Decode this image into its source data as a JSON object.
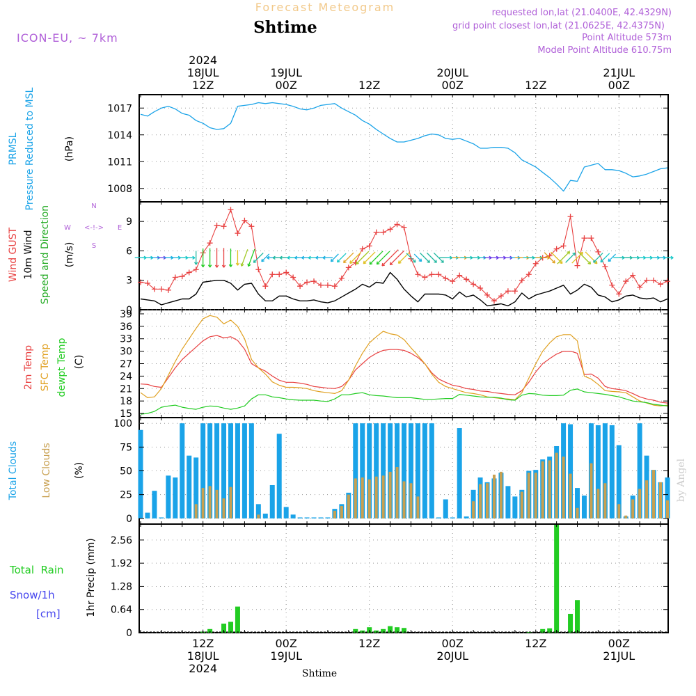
{
  "header": {
    "title": "Shtime",
    "subtitle": "Forecast Meteogram",
    "model": "ICON-EU, ~ 7km",
    "requested": "requested lon,lat (21.0400E, 42.4329N)",
    "gridpoint": "grid point closest lon,lat (21.0625E, 42.4375N)",
    "point_altitude": "Point Altitude 573m",
    "model_altitude": "Model Point Altitude 610.75m",
    "watermark": "by Angel",
    "footer": "Shtime"
  },
  "time_axis": {
    "step_hours": 1,
    "start_offset_hours_before_18jul12z": 9,
    "top_ticks": [
      {
        "hour": 9,
        "lines": [
          "2024",
          "18JUL",
          "12Z"
        ]
      },
      {
        "hour": 21,
        "lines": [
          "19JUL",
          "00Z"
        ]
      },
      {
        "hour": 33,
        "lines": [
          "12Z"
        ]
      },
      {
        "hour": 45,
        "lines": [
          "20JUL",
          "00Z"
        ]
      },
      {
        "hour": 57,
        "lines": [
          "12Z"
        ]
      },
      {
        "hour": 69,
        "lines": [
          "21JUL",
          "00Z"
        ]
      }
    ],
    "bottom_ticks": [
      {
        "hour": 9,
        "lines": [
          "12Z",
          "18JUL",
          "2024"
        ]
      },
      {
        "hour": 21,
        "lines": [
          "00Z",
          "19JUL"
        ]
      },
      {
        "hour": 33,
        "lines": [
          "12Z"
        ]
      },
      {
        "hour": 45,
        "lines": [
          "00Z",
          "20JUL"
        ]
      },
      {
        "hour": 57,
        "lines": [
          "12Z"
        ]
      },
      {
        "hour": 69,
        "lines": [
          "00Z",
          "21JUL"
        ]
      }
    ]
  },
  "chart_data": [
    {
      "type": "line",
      "panel": "pressure",
      "title": "PRMSL Pressure Reduced to MSL",
      "ylabel_lines": [
        "PRMSL",
        "Pressure Reduced to MSL"
      ],
      "unit": "(hPa)",
      "ylim": [
        1006.5,
        1018.5
      ],
      "yticks": [
        1008,
        1011,
        1014,
        1017
      ],
      "series": [
        {
          "name": "PRMSL",
          "color": "#1aa3e8",
          "values": [
            1016.3,
            1016.1,
            1016.6,
            1017.0,
            1017.2,
            1016.9,
            1016.4,
            1016.2,
            1015.6,
            1015.3,
            1014.8,
            1014.6,
            1014.7,
            1015.3,
            1017.2,
            1017.3,
            1017.4,
            1017.6,
            1017.5,
            1017.6,
            1017.5,
            1017.4,
            1017.2,
            1016.9,
            1016.8,
            1017.0,
            1017.3,
            1017.4,
            1017.5,
            1017.0,
            1016.6,
            1016.2,
            1015.6,
            1015.2,
            1014.6,
            1014.1,
            1013.6,
            1013.2,
            1013.2,
            1013.4,
            1013.6,
            1013.9,
            1014.1,
            1014.0,
            1013.6,
            1013.5,
            1013.6,
            1013.3,
            1013.0,
            1012.5,
            1012.5,
            1012.6,
            1012.6,
            1012.5,
            1012.0,
            1011.2,
            1010.8,
            1010.4,
            1009.8,
            1009.2,
            1008.5,
            1007.7,
            1008.9,
            1008.8,
            1010.4,
            1010.6,
            1010.8,
            1010.1,
            1010.1,
            1010.0,
            1009.7,
            1009.3,
            1009.4,
            1009.6,
            1009.9,
            1010.2,
            1010.3
          ]
        }
      ]
    },
    {
      "type": "line",
      "panel": "wind",
      "title": "Wind GUST 10m Wind Speed and Direction",
      "ylabel_lines": [
        "Wind GUST",
        "10m Wind",
        "Speed and Direction"
      ],
      "unit": "(m/s)",
      "compass": {
        "w": "W",
        "e": "E",
        "n": "N",
        "s": "S",
        "arrow": "<-!->"
      },
      "ylim": [
        0,
        11
      ],
      "yticks": [
        0,
        3,
        6,
        9
      ],
      "series": [
        {
          "name": "Wind GUST",
          "color": "#e84040",
          "marker": "+",
          "values": [
            2.8,
            2.7,
            2.1,
            2.1,
            2.0,
            3.3,
            3.4,
            3.8,
            4.1,
            5.8,
            6.8,
            8.6,
            8.5,
            10.2,
            7.8,
            9.1,
            8.5,
            4.1,
            2.4,
            3.6,
            3.6,
            3.8,
            3.3,
            2.4,
            2.8,
            2.9,
            2.5,
            2.5,
            2.4,
            3.2,
            4.3,
            4.8,
            6.2,
            6.5,
            7.9,
            7.9,
            8.2,
            8.7,
            8.4,
            5.2,
            3.6,
            3.3,
            3.6,
            3.6,
            3.2,
            2.9,
            3.5,
            3.1,
            2.6,
            2.2,
            1.5,
            0.9,
            1.4,
            1.9,
            1.9,
            3.0,
            3.6,
            4.7,
            5.3,
            5.5,
            6.2,
            6.5,
            9.5,
            4.5,
            7.3,
            7.3,
            5.9,
            4.4,
            2.5,
            1.6,
            2.9,
            3.5,
            2.3,
            3.0,
            3.0,
            2.6,
            2.9
          ]
        },
        {
          "name": "10m Wind",
          "color": "#000000",
          "values": [
            1.1,
            1.0,
            0.9,
            0.5,
            0.7,
            0.9,
            1.1,
            1.1,
            1.6,
            2.8,
            2.9,
            3.0,
            3.0,
            2.7,
            2.0,
            2.6,
            2.7,
            1.6,
            0.9,
            0.9,
            1.4,
            1.4,
            1.1,
            0.9,
            0.9,
            1.0,
            0.8,
            0.7,
            0.9,
            1.3,
            1.7,
            2.1,
            2.6,
            2.3,
            2.8,
            2.7,
            3.8,
            3.1,
            2.1,
            1.4,
            0.8,
            1.6,
            1.6,
            1.6,
            1.5,
            1.1,
            1.8,
            1.3,
            1.5,
            1.0,
            0.4,
            0.5,
            0.6,
            0.4,
            0.8,
            1.7,
            1.1,
            1.5,
            1.7,
            1.9,
            2.2,
            2.5,
            1.6,
            2.0,
            2.6,
            2.3,
            1.5,
            1.3,
            0.8,
            1.0,
            1.4,
            1.5,
            1.2,
            1.1,
            1.2,
            0.8,
            1.1
          ]
        },
        {
          "name": "Direction arrows",
          "legend": "Speed and Direction",
          "color": "#22aa22",
          "values": [
            90,
            90,
            90,
            90,
            90,
            90,
            90,
            90,
            180,
            180,
            180,
            180,
            180,
            180,
            180,
            200,
            200,
            225,
            225,
            270,
            270,
            270,
            270,
            270,
            270,
            270,
            270,
            270,
            225,
            225,
            225,
            225,
            225,
            225,
            225,
            225,
            225,
            225,
            225,
            135,
            135,
            135,
            135,
            135,
            90,
            90,
            90,
            90,
            90,
            90,
            90,
            90,
            90,
            90,
            90,
            90,
            90,
            90,
            90,
            135,
            135,
            45,
            45,
            45,
            135,
            135,
            225,
            225,
            225,
            90,
            90,
            90,
            90,
            90,
            90,
            90,
            90
          ]
        }
      ]
    },
    {
      "type": "line",
      "panel": "temperature",
      "title": "2m Temp / SFC Temp / dewpt Temp",
      "ylabel_lines": [
        "2m Temp",
        "SFC Temp",
        "dewpt Temp"
      ],
      "unit": "(C)",
      "ylim": [
        14,
        40
      ],
      "yticks": [
        15,
        18,
        21,
        24,
        27,
        30,
        33,
        36,
        39
      ],
      "series": [
        {
          "name": "2m Temp",
          "color": "#e84040",
          "values": [
            22.1,
            22.0,
            21.5,
            21.3,
            23.6,
            26.0,
            28.0,
            29.5,
            31.0,
            32.5,
            33.5,
            33.8,
            33.2,
            33.5,
            32.6,
            30.5,
            27.0,
            26.0,
            25.2,
            24.0,
            23.0,
            22.5,
            22.5,
            22.3,
            22.0,
            21.5,
            21.3,
            21.1,
            21.0,
            21.5,
            23.0,
            25.5,
            27.0,
            28.5,
            29.5,
            30.2,
            30.4,
            30.4,
            30.2,
            29.5,
            28.5,
            27.0,
            24.8,
            23.3,
            22.5,
            21.8,
            21.5,
            21.0,
            20.8,
            20.4,
            20.3,
            20.0,
            19.8,
            19.6,
            19.5,
            20.5,
            22.5,
            25.0,
            27.0,
            28.2,
            29.3,
            30.0,
            30.0,
            29.5,
            24.4,
            24.5,
            23.5,
            21.5,
            21.0,
            20.8,
            20.5,
            19.8,
            19.0,
            18.5,
            18.2,
            17.7,
            17.5
          ]
        },
        {
          "name": "SFC Temp",
          "color": "#e0a020",
          "values": [
            20.0,
            18.8,
            19.0,
            21.0,
            24.2,
            27.5,
            30.5,
            33.0,
            35.5,
            37.8,
            38.6,
            38.2,
            36.6,
            37.5,
            36.0,
            33.0,
            28.0,
            26.0,
            24.5,
            22.6,
            21.8,
            21.3,
            21.3,
            21.2,
            21.0,
            20.5,
            20.2,
            20.0,
            19.8,
            20.5,
            23.0,
            26.5,
            29.5,
            32.0,
            33.5,
            34.8,
            34.2,
            33.9,
            32.8,
            30.8,
            29.0,
            27.0,
            24.5,
            22.5,
            21.5,
            21.0,
            20.5,
            20.0,
            19.8,
            19.5,
            19.0,
            18.8,
            18.6,
            18.5,
            18.3,
            20.0,
            23.5,
            27.0,
            30.0,
            32.0,
            33.5,
            34.0,
            34.0,
            32.5,
            24.0,
            23.3,
            22.0,
            20.5,
            20.3,
            20.2,
            20.0,
            19.0,
            18.0,
            17.5,
            17.0,
            16.8,
            17.0
          ]
        },
        {
          "name": "dewpt Temp",
          "color": "#22cc22",
          "values": [
            14.8,
            15.0,
            15.5,
            16.5,
            16.8,
            17.0,
            16.5,
            16.2,
            16.0,
            16.5,
            16.8,
            16.7,
            16.3,
            16.0,
            16.3,
            16.8,
            18.5,
            19.5,
            19.5,
            19.0,
            18.8,
            18.5,
            18.3,
            18.2,
            18.2,
            18.2,
            18.0,
            17.9,
            18.5,
            19.5,
            19.5,
            19.8,
            20.0,
            19.5,
            19.3,
            19.2,
            19.0,
            18.8,
            18.8,
            18.8,
            18.6,
            18.4,
            18.4,
            18.5,
            18.6,
            18.6,
            19.6,
            19.4,
            19.2,
            19.0,
            18.9,
            18.9,
            18.7,
            18.3,
            18.2,
            19.4,
            19.8,
            19.7,
            19.4,
            19.3,
            19.3,
            19.4,
            20.6,
            20.9,
            20.2,
            20.0,
            19.8,
            19.6,
            19.3,
            19.0,
            18.5,
            18.0,
            17.8,
            17.6,
            17.2,
            17.0,
            16.8
          ]
        }
      ]
    },
    {
      "type": "bar",
      "panel": "clouds",
      "title": "Total Clouds / Low Clouds",
      "ylabel_lines": [
        "Total Clouds",
        "Low Clouds"
      ],
      "unit": "(%)",
      "ylim": [
        -6,
        106
      ],
      "yticks": [
        0,
        25,
        50,
        75,
        100
      ],
      "series": [
        {
          "name": "Total Clouds",
          "color": "#1aa3e8",
          "values": [
            93,
            6,
            29,
            1,
            45,
            43,
            100,
            66,
            64,
            100,
            100,
            100,
            100,
            100,
            100,
            100,
            100,
            15,
            5,
            35,
            89,
            12,
            4,
            1,
            1,
            1,
            1,
            1,
            10,
            15,
            27,
            100,
            100,
            100,
            100,
            100,
            100,
            100,
            100,
            100,
            100,
            100,
            100,
            1,
            20,
            1,
            95,
            2,
            30,
            43,
            38,
            42,
            48,
            34,
            23,
            30,
            50,
            51,
            62,
            65,
            76,
            100,
            99,
            32,
            24,
            100,
            98,
            100,
            98,
            77,
            2,
            24,
            100,
            66,
            51,
            38,
            43
          ]
        },
        {
          "name": "Low Clouds",
          "color": "#c8a050",
          "values": [
            0,
            0,
            0,
            0,
            0,
            0,
            0,
            0,
            15,
            32,
            34,
            30,
            21,
            33,
            0,
            0,
            0,
            4,
            0,
            0,
            0,
            0,
            0,
            0,
            0,
            0,
            0,
            0,
            8,
            13,
            25,
            42,
            43,
            41,
            44,
            45,
            49,
            54,
            39,
            37,
            23,
            0,
            0,
            0,
            0,
            0,
            0,
            0,
            18,
            36,
            37,
            46,
            49,
            0,
            0,
            28,
            48,
            48,
            60,
            61,
            69,
            65,
            47,
            11,
            0,
            58,
            31,
            37,
            0,
            15,
            3,
            20,
            31,
            40,
            51,
            38,
            19
          ]
        }
      ]
    },
    {
      "type": "bar",
      "panel": "precip",
      "title": "Total Rain / Snow/1h",
      "ylabel": "1hr Precip (mm)",
      "legend_lines": [
        "Total  Rain",
        "Snow/1h",
        "[cm]"
      ],
      "ylim": [
        0,
        3.0
      ],
      "yticks": [
        0,
        0.64,
        1.28,
        1.92,
        2.56
      ],
      "series": [
        {
          "name": "Total Rain",
          "color": "#22cc22",
          "values": [
            0,
            0,
            0,
            0,
            0,
            0,
            0,
            0,
            0,
            0.03,
            0.1,
            0,
            0.25,
            0.3,
            0.72,
            0,
            0,
            0,
            0,
            0,
            0,
            0,
            0,
            0,
            0,
            0,
            0,
            0,
            0,
            0,
            0,
            0.1,
            0.06,
            0.15,
            0.06,
            0.1,
            0.18,
            0.15,
            0.13,
            0,
            0,
            0,
            0,
            0,
            0,
            0,
            0,
            0,
            0,
            0,
            0,
            0,
            0,
            0,
            0,
            0,
            0.02,
            0,
            0.1,
            0.12,
            2.98,
            0,
            0.52,
            0.9,
            0,
            0,
            0,
            0,
            0,
            0,
            0,
            0,
            0,
            0,
            0,
            0,
            0
          ]
        },
        {
          "name": "Snow/1h",
          "color": "#4444ee",
          "values": [
            0,
            0,
            0,
            0,
            0,
            0,
            0,
            0,
            0,
            0,
            0,
            0,
            0,
            0,
            0,
            0,
            0,
            0,
            0,
            0,
            0,
            0,
            0,
            0,
            0,
            0,
            0,
            0,
            0,
            0,
            0,
            0,
            0,
            0,
            0,
            0,
            0,
            0,
            0,
            0,
            0,
            0,
            0,
            0,
            0,
            0,
            0,
            0,
            0,
            0,
            0,
            0,
            0,
            0,
            0,
            0,
            0,
            0,
            0,
            0,
            0,
            0,
            0,
            0,
            0,
            0,
            0,
            0,
            0,
            0,
            0,
            0,
            0,
            0,
            0,
            0,
            0
          ]
        }
      ]
    }
  ]
}
